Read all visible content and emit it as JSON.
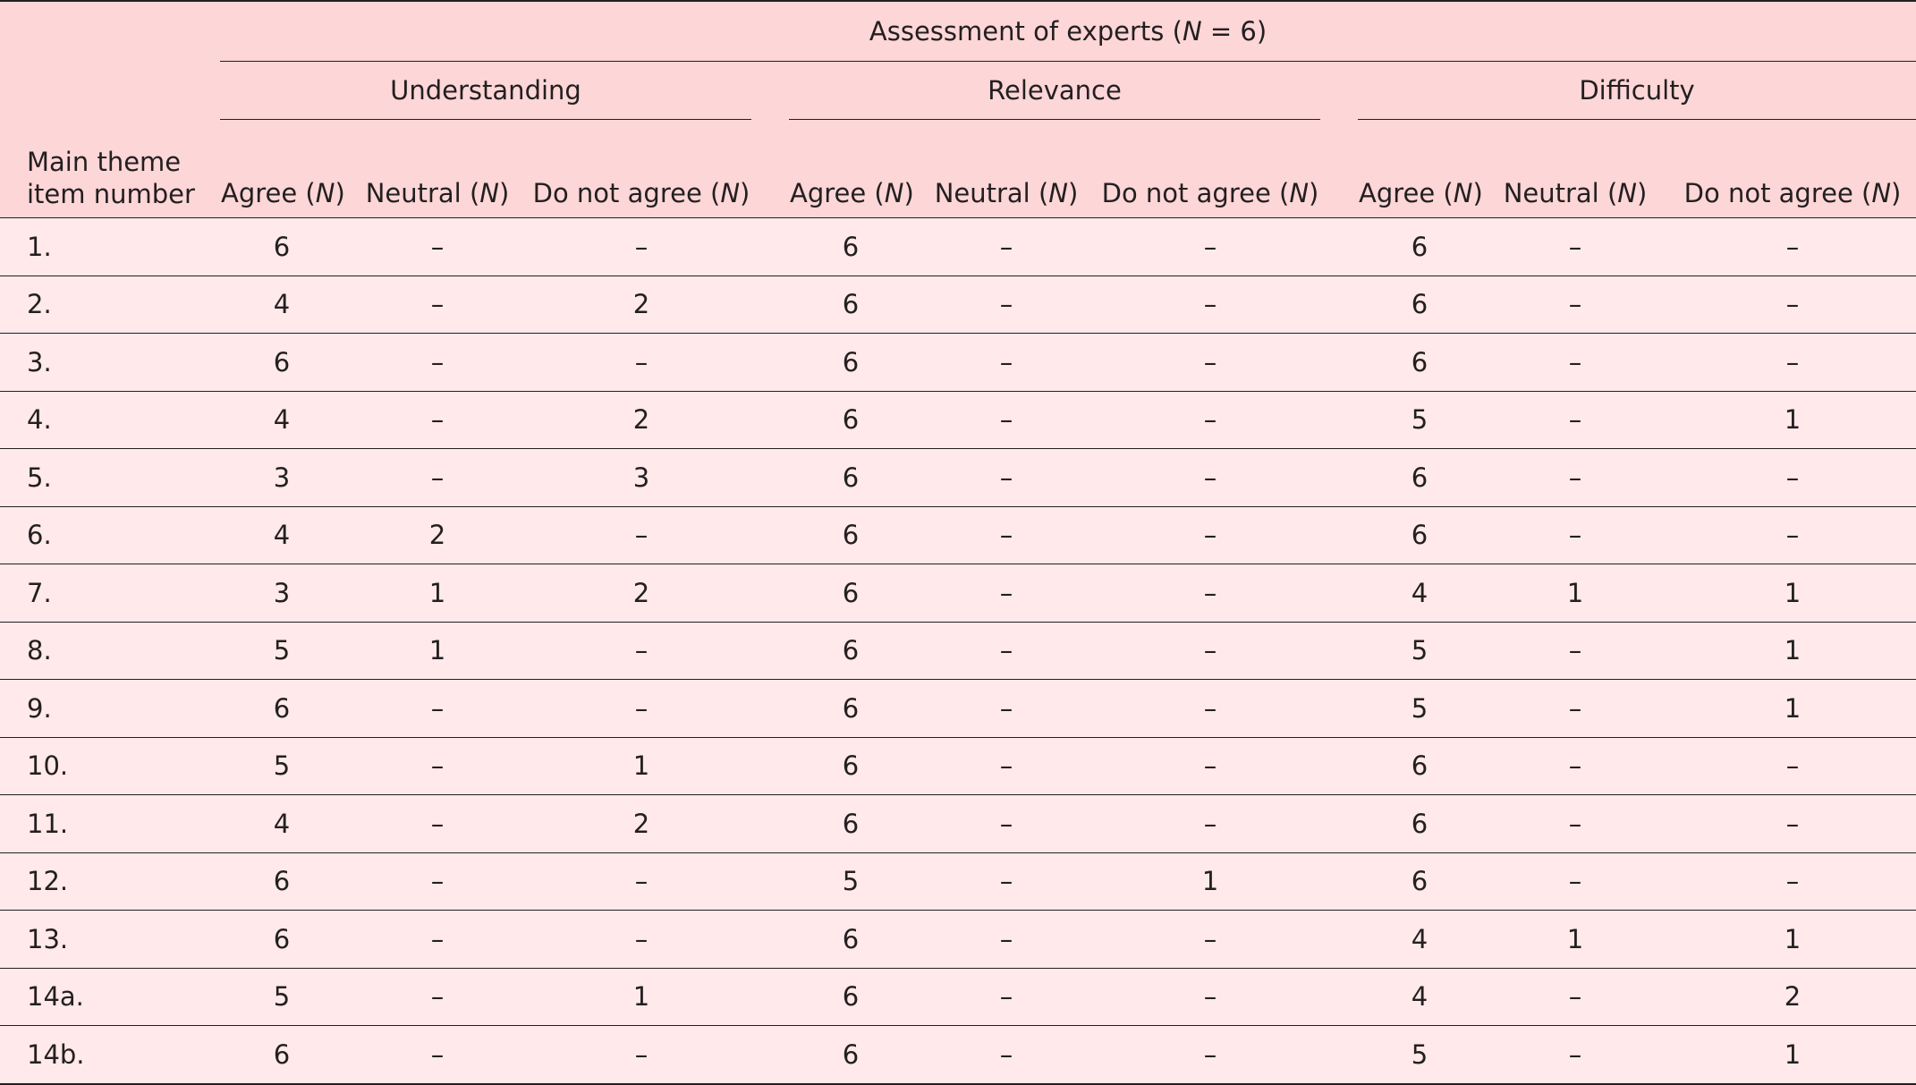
{
  "header": {
    "row_label_line1": "Main theme",
    "row_label_line2": "item number",
    "super_title_prefix": "Assessment of experts (",
    "super_title_var": "N",
    "super_title_suffix": " = 6)",
    "groups": [
      "Understanding",
      "Relevance",
      "Difficulty"
    ],
    "sub_columns": [
      {
        "label": "Agree (",
        "var": "N",
        "close": ")"
      },
      {
        "label": "Neutral (",
        "var": "N",
        "close": ")"
      },
      {
        "label": "Do not agree (",
        "var": "N",
        "close": ")"
      }
    ]
  },
  "rows": [
    {
      "item": "1.",
      "values": [
        "6",
        "–",
        "–",
        "6",
        "–",
        "–",
        "6",
        "–",
        "–"
      ]
    },
    {
      "item": "2.",
      "values": [
        "4",
        "–",
        "2",
        "6",
        "–",
        "–",
        "6",
        "–",
        "–"
      ]
    },
    {
      "item": "3.",
      "values": [
        "6",
        "–",
        "–",
        "6",
        "–",
        "–",
        "6",
        "–",
        "–"
      ]
    },
    {
      "item": "4.",
      "values": [
        "4",
        "–",
        "2",
        "6",
        "–",
        "–",
        "5",
        "–",
        "1"
      ]
    },
    {
      "item": "5.",
      "values": [
        "3",
        "–",
        "3",
        "6",
        "–",
        "–",
        "6",
        "–",
        "–"
      ]
    },
    {
      "item": "6.",
      "values": [
        "4",
        "2",
        "–",
        "6",
        "–",
        "–",
        "6",
        "–",
        "–"
      ]
    },
    {
      "item": "7.",
      "values": [
        "3",
        "1",
        "2",
        "6",
        "–",
        "–",
        "4",
        "1",
        "1"
      ]
    },
    {
      "item": "8.",
      "values": [
        "5",
        "1",
        "–",
        "6",
        "–",
        "–",
        "5",
        "–",
        "1"
      ]
    },
    {
      "item": "9.",
      "values": [
        "6",
        "–",
        "–",
        "6",
        "–",
        "–",
        "5",
        "–",
        "1"
      ]
    },
    {
      "item": "10.",
      "values": [
        "5",
        "–",
        "1",
        "6",
        "–",
        "–",
        "6",
        "–",
        "–"
      ]
    },
    {
      "item": "11.",
      "values": [
        "4",
        "–",
        "2",
        "6",
        "–",
        "–",
        "6",
        "–",
        "–"
      ]
    },
    {
      "item": "12.",
      "values": [
        "6",
        "–",
        "–",
        "5",
        "–",
        "1",
        "6",
        "–",
        "–"
      ]
    },
    {
      "item": "13.",
      "values": [
        "6",
        "–",
        "–",
        "6",
        "–",
        "–",
        "4",
        "1",
        "1"
      ]
    },
    {
      "item": "14a.",
      "values": [
        "5",
        "–",
        "1",
        "6",
        "–",
        "–",
        "4",
        "–",
        "2"
      ]
    },
    {
      "item": "14b.",
      "values": [
        "6",
        "–",
        "–",
        "6",
        "–",
        "–",
        "5",
        "–",
        "1"
      ]
    }
  ]
}
